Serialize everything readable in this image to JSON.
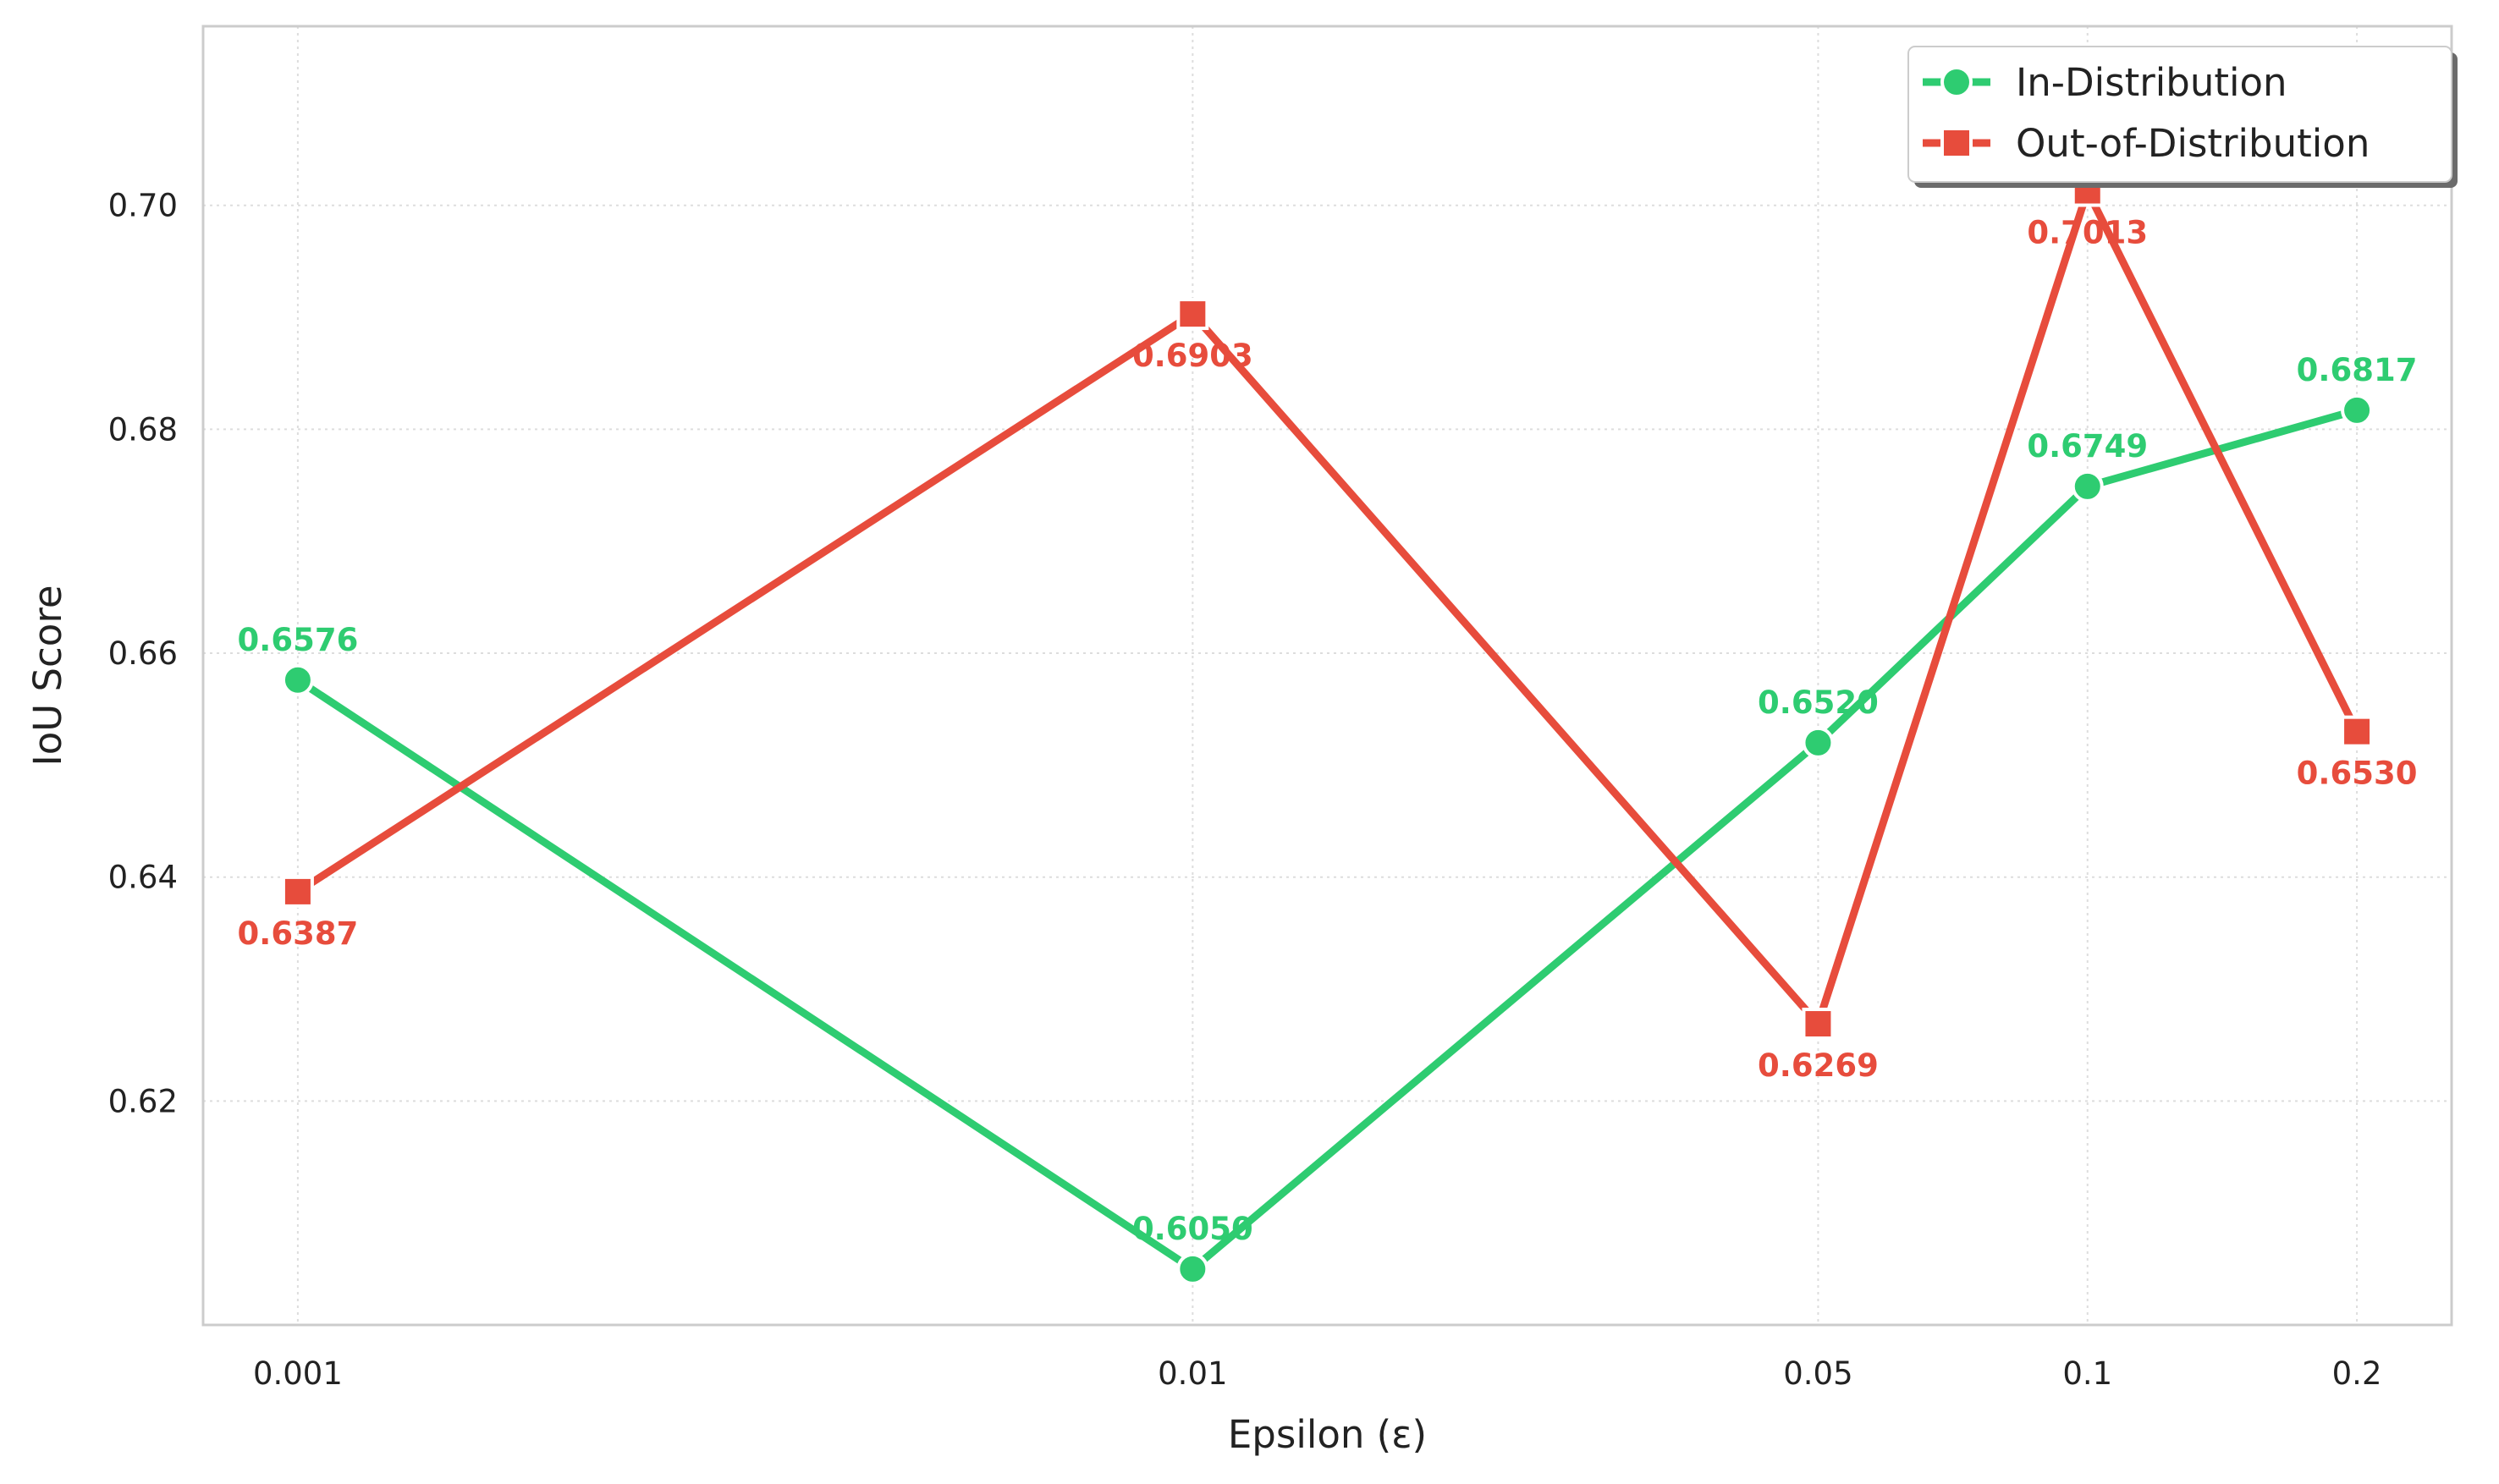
{
  "chart_data": {
    "type": "line",
    "title": "",
    "xlabel": "Epsilon (ε)",
    "ylabel": "IoU Score",
    "x": [
      "0.001",
      "0.01",
      "0.05",
      "0.1",
      "0.2"
    ],
    "x_scale": "log",
    "x_values": [
      0.001,
      0.01,
      0.05,
      0.1,
      0.2
    ],
    "ylim": [
      0.6,
      0.716
    ],
    "yticks": [
      0.62,
      0.64,
      0.66,
      0.68,
      0.7
    ],
    "ytick_labels": [
      "0.62",
      "0.64",
      "0.66",
      "0.68",
      "0.70"
    ],
    "grid": true,
    "legend_position": "top-right",
    "series": [
      {
        "name": "In-Distribution",
        "values": [
          0.6576,
          0.605,
          0.652,
          0.6749,
          0.6817
        ],
        "labels": [
          "0.6576",
          "0.6050",
          "0.6520",
          "0.6749",
          "0.6817"
        ],
        "color": "#2ecc71",
        "marker": "circle",
        "label_position": "above"
      },
      {
        "name": "Out-of-Distribution",
        "values": [
          0.6387,
          0.6903,
          0.6269,
          0.7013,
          0.653
        ],
        "labels": [
          "0.6387",
          "0.6903",
          "0.6269",
          "0.7013",
          "0.6530"
        ],
        "color": "#e74c3c",
        "marker": "square",
        "label_position": "below"
      }
    ]
  }
}
